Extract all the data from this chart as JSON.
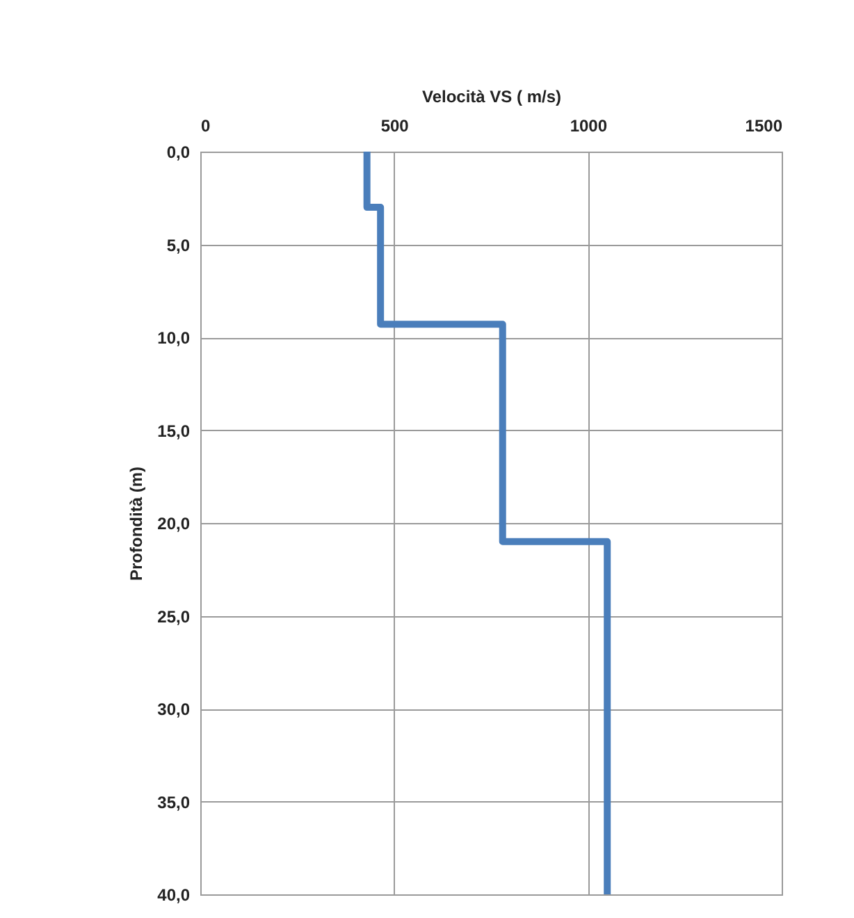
{
  "chart_data": {
    "type": "line",
    "xlabel": "Velocità VS ( m/s)",
    "ylabel": "Profondità (m)",
    "x": [
      430,
      430,
      465,
      465,
      780,
      780,
      1050,
      1050
    ],
    "series": [
      {
        "color": "#4a7ebb",
        "values": [
          0,
          3,
          3,
          9.3,
          9.3,
          21,
          21,
          40
        ]
      }
    ],
    "xlim": [
      0,
      1500
    ],
    "xticks": [
      0,
      500,
      1000,
      1500
    ],
    "ylim": [
      40,
      0
    ],
    "yticks": [
      {
        "value": 0,
        "label": "0,0"
      },
      {
        "value": 5,
        "label": "5,0"
      },
      {
        "value": 10,
        "label": "10,0"
      },
      {
        "value": 15,
        "label": "15,0"
      },
      {
        "value": 20,
        "label": "20,0"
      },
      {
        "value": 25,
        "label": "25,0"
      },
      {
        "value": 30,
        "label": "30,0"
      },
      {
        "value": 35,
        "label": "35,0"
      },
      {
        "value": 40,
        "label": "40,0"
      }
    ],
    "grid": true,
    "marker": "none",
    "line_style": "solid"
  }
}
